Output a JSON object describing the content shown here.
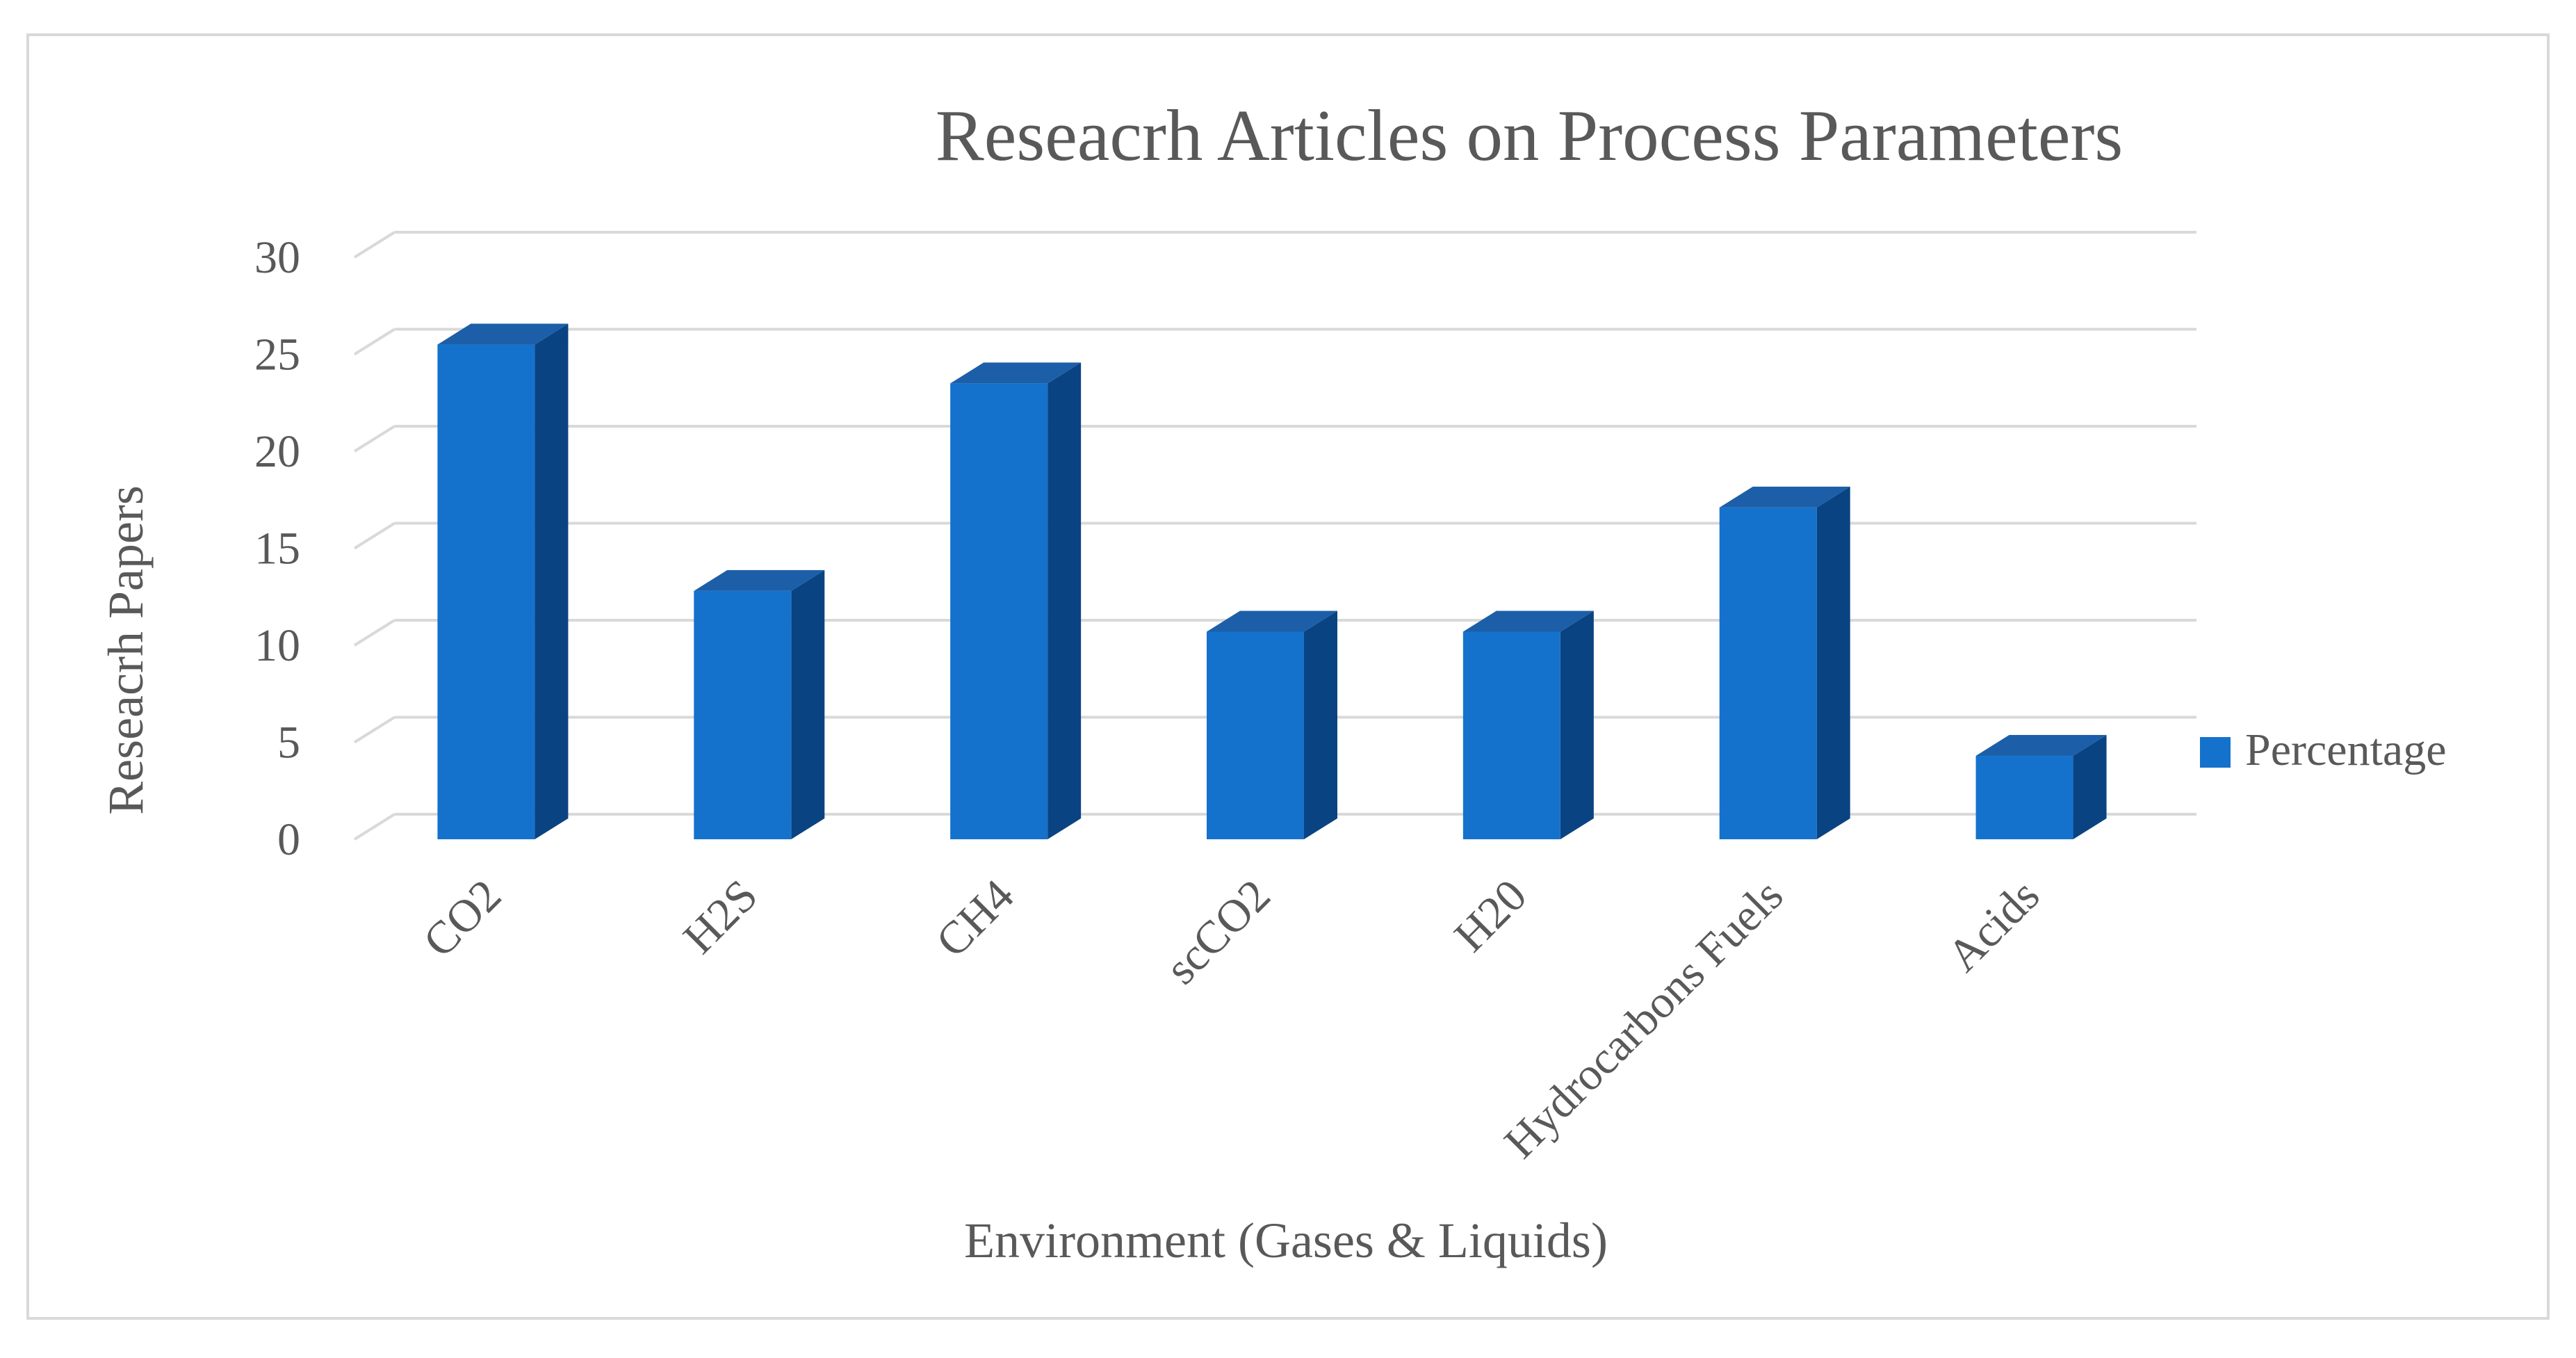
{
  "chart_data": {
    "type": "bar",
    "style": "3d-column",
    "title": "Reseacrh Articles on Process Parameters",
    "xlabel": "Environment (Gases & Liquids)",
    "ylabel": "Reseacrh Papers",
    "categories": [
      "CO2",
      "H2S",
      "CH4",
      "scCO2",
      "H20",
      "Hydrocarbons Fuels",
      "Acids"
    ],
    "series": [
      {
        "name": "Percentage",
        "values": [
          25.5,
          12.8,
          23.5,
          10.7,
          10.7,
          17.1,
          4.3
        ]
      }
    ],
    "ylim": [
      0,
      30
    ],
    "yticks": [
      0,
      5,
      10,
      15,
      20,
      25,
      30
    ],
    "grid": true,
    "legend": "right",
    "colors": {
      "front": "#1572CC",
      "side": "#0A4382",
      "top": "#1C5FA8",
      "grid": "#d9d9d9",
      "text": "#595959"
    }
  }
}
